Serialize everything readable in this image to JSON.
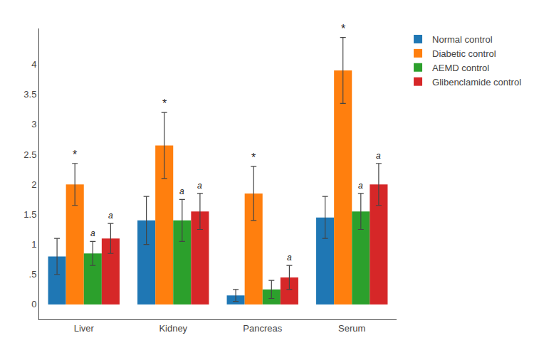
{
  "chart_data": {
    "type": "bar",
    "categories": [
      "Liver",
      "Kidney",
      "Pancreas",
      "Serum"
    ],
    "series": [
      {
        "name": "Normal control",
        "values": [
          0.8,
          1.4,
          0.15,
          1.45
        ],
        "errors": [
          0.3,
          0.4,
          0.1,
          0.35
        ]
      },
      {
        "name": "Diabetic control",
        "values": [
          2.0,
          2.65,
          1.85,
          3.9
        ],
        "errors": [
          0.35,
          0.55,
          0.45,
          0.55
        ]
      },
      {
        "name": "AEMD control",
        "values": [
          0.85,
          1.4,
          0.25,
          1.55
        ],
        "errors": [
          0.2,
          0.35,
          0.15,
          0.3
        ]
      },
      {
        "name": "Glibenclamide control",
        "values": [
          1.1,
          1.55,
          0.45,
          2.0
        ],
        "errors": [
          0.25,
          0.3,
          0.2,
          0.35
        ]
      }
    ],
    "ylim": [
      -0.25,
      4.6
    ],
    "yticks": [
      0,
      {
        "value": 0.5,
        "label": ".5"
      },
      1,
      1.5,
      2,
      2.5,
      3,
      3.5,
      4
    ],
    "grid": false,
    "legend": "upper right",
    "annotations": [
      {
        "category": "Liver",
        "series": "Diabetic control",
        "text": "*"
      },
      {
        "category": "Liver",
        "series": "AEMD control",
        "text": "a"
      },
      {
        "category": "Liver",
        "series": "Glibenclamide control",
        "text": "a"
      },
      {
        "category": "Kidney",
        "series": "Diabetic control",
        "text": "*"
      },
      {
        "category": "Kidney",
        "series": "AEMD control",
        "text": "a"
      },
      {
        "category": "Kidney",
        "series": "Glibenclamide control",
        "text": "a"
      },
      {
        "category": "Pancreas",
        "series": "Diabetic control",
        "text": "*"
      },
      {
        "category": "Pancreas",
        "series": "Glibenclamide control",
        "text": "a"
      },
      {
        "category": "Serum",
        "series": "Diabetic control",
        "text": "*"
      },
      {
        "category": "Serum",
        "series": "AEMD control",
        "text": "a"
      },
      {
        "category": "Serum",
        "series": "Glibenclamide control",
        "text": "a"
      }
    ]
  }
}
